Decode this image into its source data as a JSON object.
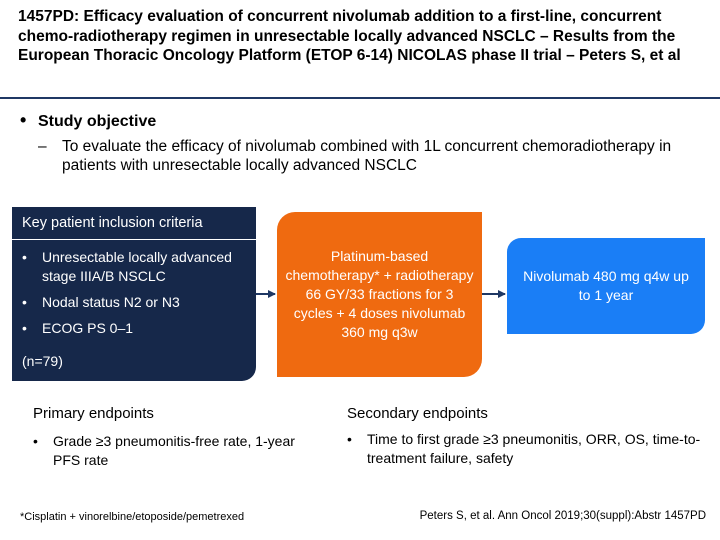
{
  "slide": {
    "title": "1457PD: Efficacy evaluation of concurrent nivolumab addition to a first-line, concurrent chemo-radiotherapy regimen in unresectable locally advanced NSCLC – Results from the European Thoracic Oncology Platform (ETOP 6-14) NICOLAS phase II trial – Peters S, et al"
  },
  "objective": {
    "bullet": "•",
    "heading": "Study objective",
    "dash": "–",
    "text": "To evaluate the efficacy of nivolumab combined with 1L concurrent chemoradiotherapy in patients with unresectable locally advanced NSCLC"
  },
  "inclusion": {
    "header": "Key patient inclusion criteria",
    "items": [
      "Unresectable locally advanced stage IIIA/B NSCLC",
      "Nodal status N2 or N3",
      "ECOG PS 0–1"
    ],
    "bullet": "•",
    "n": "(n=79)"
  },
  "chemo_box": {
    "text": "Platinum-based chemotherapy* + radiotherapy 66 GY/33 fractions for 3 cycles + 4 doses nivolumab 360 mg q3w"
  },
  "nivolumab_box": {
    "text": "Nivolumab 480 mg q4w up to 1 year"
  },
  "primary": {
    "title": "Primary endpoints",
    "bullet": "•",
    "items": [
      "Grade ≥3 pneumonitis-free rate, 1-year PFS rate"
    ]
  },
  "secondary": {
    "title": "Secondary endpoints",
    "bullet": "•",
    "items": [
      "Time to first grade ≥3 pneumonitis, ORR, OS, time-to-treatment failure, safety"
    ]
  },
  "footnote": "*Cisplatin + vinorelbine/etoposide/pemetrexed",
  "reference": "Peters S, et al. Ann Oncol 2019;30(suppl):Abstr 1457PD",
  "colors": {
    "navy": "#16284a",
    "orange": "#ef6a10",
    "blue": "#1a7ef6",
    "arrow": "#1f3864"
  }
}
